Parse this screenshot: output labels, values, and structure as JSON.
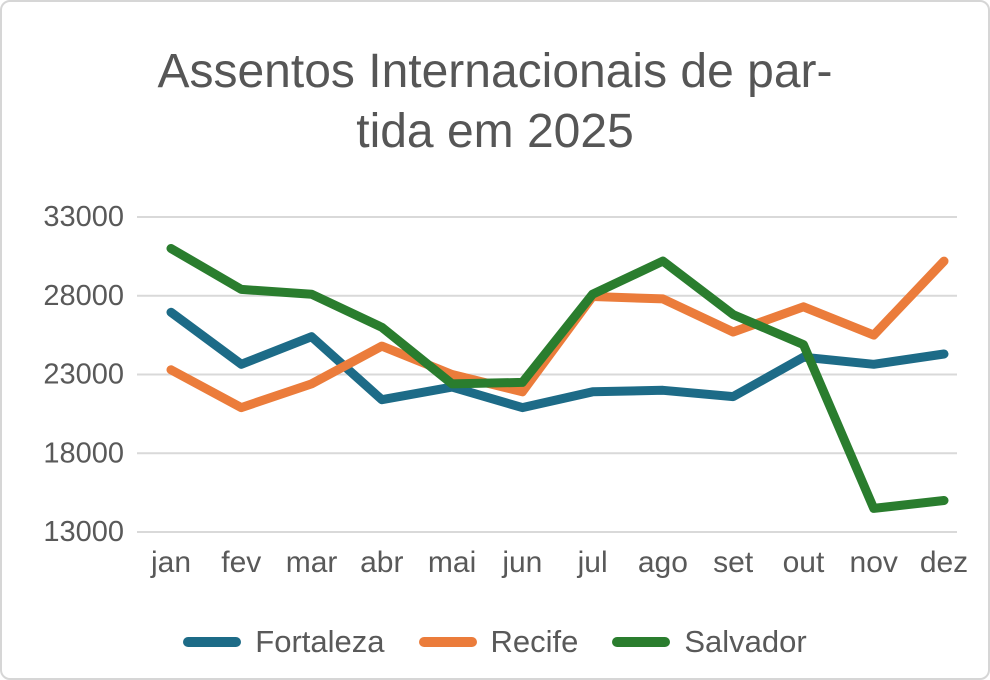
{
  "frame": {
    "background": "#ffffff",
    "border_color": "#d6d6d6"
  },
  "title": {
    "line1": "Assentos Internacionais de par-",
    "line2": "tida em 2025",
    "color": "#565656"
  },
  "chart_data": {
    "type": "line",
    "title": "Assentos Internacionais de partida em 2025",
    "categories": [
      "jan",
      "fev",
      "mar",
      "abr",
      "mai",
      "jun",
      "jul",
      "ago",
      "set",
      "out",
      "nov",
      "dez"
    ],
    "series": [
      {
        "name": "Fortaleza",
        "color": "#1D6B87",
        "values": [
          26950,
          23650,
          25400,
          21400,
          22200,
          20900,
          21900,
          22000,
          21600,
          24100,
          23650,
          24300
        ]
      },
      {
        "name": "Recife",
        "color": "#EB7C3B",
        "values": [
          23300,
          20900,
          22400,
          24800,
          23000,
          21900,
          27950,
          27800,
          25700,
          27300,
          25500,
          30200
        ]
      },
      {
        "name": "Salvador",
        "color": "#2A7D2E",
        "values": [
          31000,
          28400,
          28100,
          26000,
          22400,
          22500,
          28100,
          30200,
          26800,
          24900,
          14500,
          15000
        ]
      }
    ],
    "yticks": [
      33000,
      28000,
      23000,
      18000,
      13000
    ],
    "ylim": [
      13000,
      33000
    ],
    "grid": true,
    "legend_position": "bottom",
    "gridline_color": "#d9d9d9",
    "axis_label_color": "#595959",
    "line_width": 9
  }
}
